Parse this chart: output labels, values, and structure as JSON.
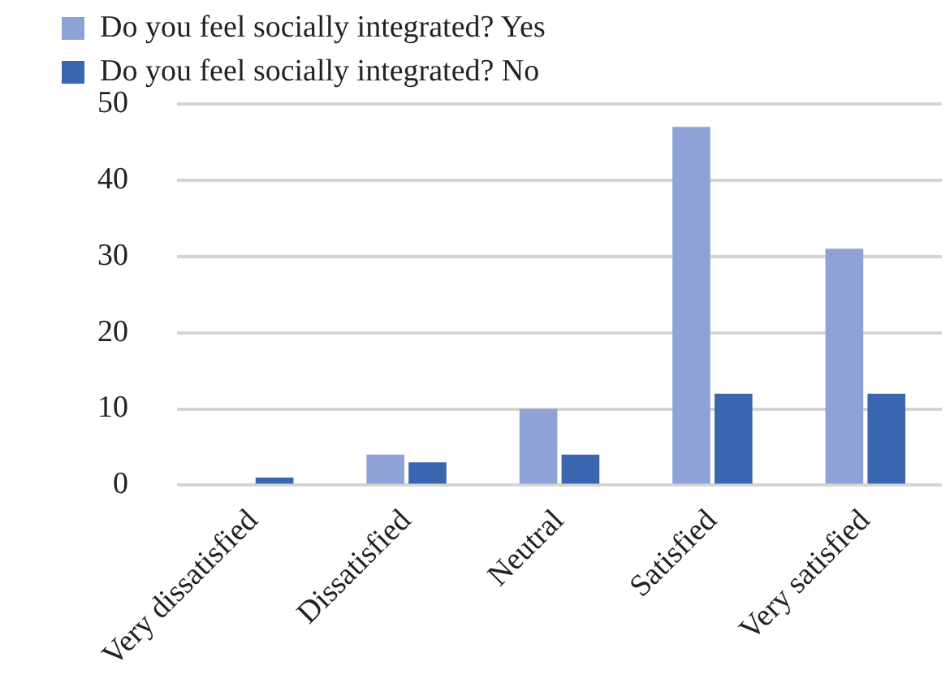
{
  "chart_data": {
    "type": "bar",
    "categories": [
      "Very dissatisfied",
      "Dissatisfied",
      "Neutral",
      "Satisfied",
      "Very satisfied"
    ],
    "series": [
      {
        "name": "Do you feel socially integrated? Yes",
        "color": "#8ea2d6",
        "values": [
          0,
          4,
          10,
          47,
          31
        ]
      },
      {
        "name": "Do you feel socially integrated? No",
        "color": "#3a66b0",
        "values": [
          1,
          3,
          4,
          12,
          12
        ]
      }
    ],
    "ylim": [
      0,
      50
    ],
    "yticks": [
      0,
      10,
      20,
      30,
      40,
      50
    ],
    "grid": "y",
    "legend": "top"
  }
}
